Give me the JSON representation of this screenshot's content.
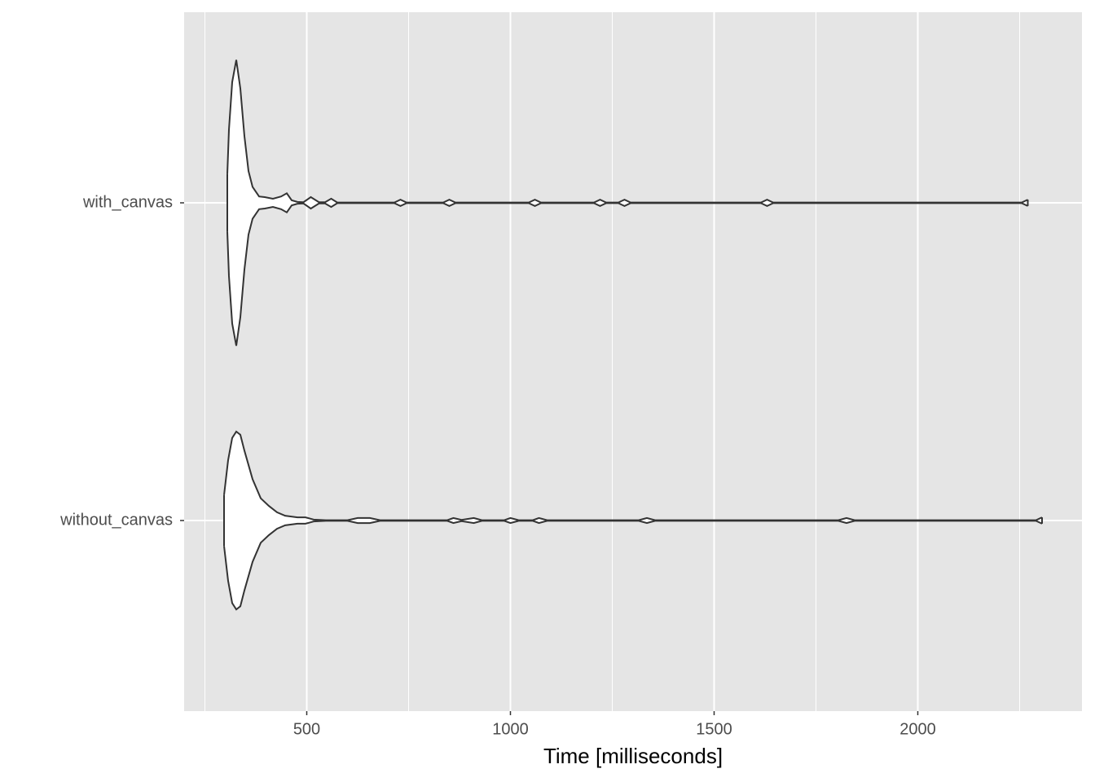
{
  "chart_data": {
    "type": "violin",
    "orientation": "horizontal",
    "x_label": "Time [milliseconds]",
    "categories": [
      "with_canvas",
      "without_canvas"
    ],
    "xlim": [
      199,
      2403
    ],
    "xticks": [
      500,
      1000,
      1500,
      2000
    ],
    "x_minor_grid": [
      250,
      750,
      1250,
      1750,
      2250
    ],
    "grid": true,
    "panel_color": "#e5e5e5",
    "fill_color": "#ffffff",
    "line_color": "#333333",
    "series": [
      {
        "x": [
          305,
          309,
          317,
          327,
          337,
          347,
          357,
          367,
          383,
          397,
          417,
          437,
          451,
          463,
          477,
          492,
          510,
          530,
          545,
          560,
          575,
          715,
          730,
          745,
          835,
          850,
          865,
          1045,
          1060,
          1075,
          1205,
          1220,
          1235,
          1265,
          1280,
          1295,
          1615,
          1630,
          1645,
          2255,
          2270
        ],
        "values": [
          0.09,
          0.23,
          0.38,
          0.45,
          0.36,
          0.21,
          0.1,
          0.05,
          0.02,
          0.018,
          0.013,
          0.02,
          0.03,
          0.008,
          0.003,
          0.002,
          0.018,
          0.002,
          0.002,
          0.013,
          0.001,
          0.001,
          0.01,
          0.001,
          0.001,
          0.01,
          0.001,
          0.001,
          0.01,
          0.001,
          0.001,
          0.01,
          0.001,
          0.001,
          0.01,
          0.001,
          0.001,
          0.01,
          0.001,
          0.001,
          0.01
        ]
      },
      {
        "x": [
          297,
          307,
          317,
          327,
          337,
          347,
          367,
          387,
          407,
          427,
          447,
          477,
          497,
          517,
          547,
          600,
          625,
          655,
          680,
          845,
          860,
          880,
          910,
          930,
          985,
          1000,
          1020,
          1055,
          1070,
          1090,
          1315,
          1335,
          1355,
          1805,
          1825,
          1845,
          2290,
          2305
        ],
        "values": [
          0.08,
          0.19,
          0.26,
          0.28,
          0.27,
          0.22,
          0.13,
          0.07,
          0.046,
          0.026,
          0.015,
          0.01,
          0.01,
          0.003,
          0.001,
          0.001,
          0.008,
          0.008,
          0.001,
          0.001,
          0.008,
          0.002,
          0.008,
          0.001,
          0.001,
          0.008,
          0.001,
          0.001,
          0.008,
          0.001,
          0.001,
          0.008,
          0.001,
          0.001,
          0.008,
          0.001,
          0.001,
          0.01
        ]
      }
    ]
  }
}
